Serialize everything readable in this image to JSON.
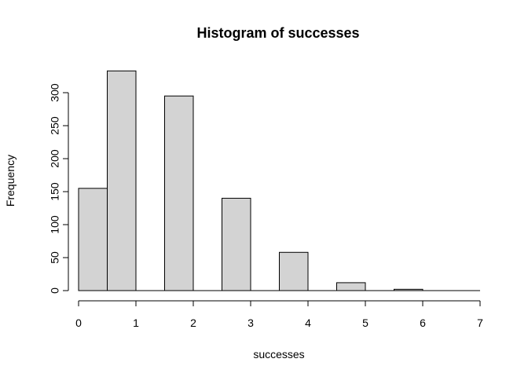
{
  "chart_data": {
    "type": "bar",
    "title": "Histogram of successes",
    "xlabel": "successes",
    "ylabel": "Frequency",
    "bins": [
      {
        "from": 0.0,
        "to": 0.5,
        "value": 155
      },
      {
        "from": 0.5,
        "to": 1.0,
        "value": 333
      },
      {
        "from": 1.0,
        "to": 1.5,
        "value": 0
      },
      {
        "from": 1.5,
        "to": 2.0,
        "value": 295
      },
      {
        "from": 2.0,
        "to": 2.5,
        "value": 0
      },
      {
        "from": 2.5,
        "to": 3.0,
        "value": 140
      },
      {
        "from": 3.0,
        "to": 3.5,
        "value": 0
      },
      {
        "from": 3.5,
        "to": 4.0,
        "value": 58
      },
      {
        "from": 4.0,
        "to": 4.5,
        "value": 0
      },
      {
        "from": 4.5,
        "to": 5.0,
        "value": 12
      },
      {
        "from": 5.0,
        "to": 5.5,
        "value": 0
      },
      {
        "from": 5.5,
        "to": 6.0,
        "value": 2
      },
      {
        "from": 6.0,
        "to": 6.5,
        "value": 0
      },
      {
        "from": 6.5,
        "to": 7.0,
        "value": 0
      }
    ],
    "xlim": [
      0,
      7
    ],
    "ylim": [
      0,
      333
    ],
    "x_ticks": [
      "0",
      "1",
      "2",
      "3",
      "4",
      "5",
      "6",
      "7"
    ],
    "y_ticks": [
      "0",
      "50",
      "100",
      "150",
      "200",
      "250",
      "300"
    ],
    "bar_fill": "#d3d3d3",
    "bar_stroke": "#000000",
    "grid": false
  }
}
